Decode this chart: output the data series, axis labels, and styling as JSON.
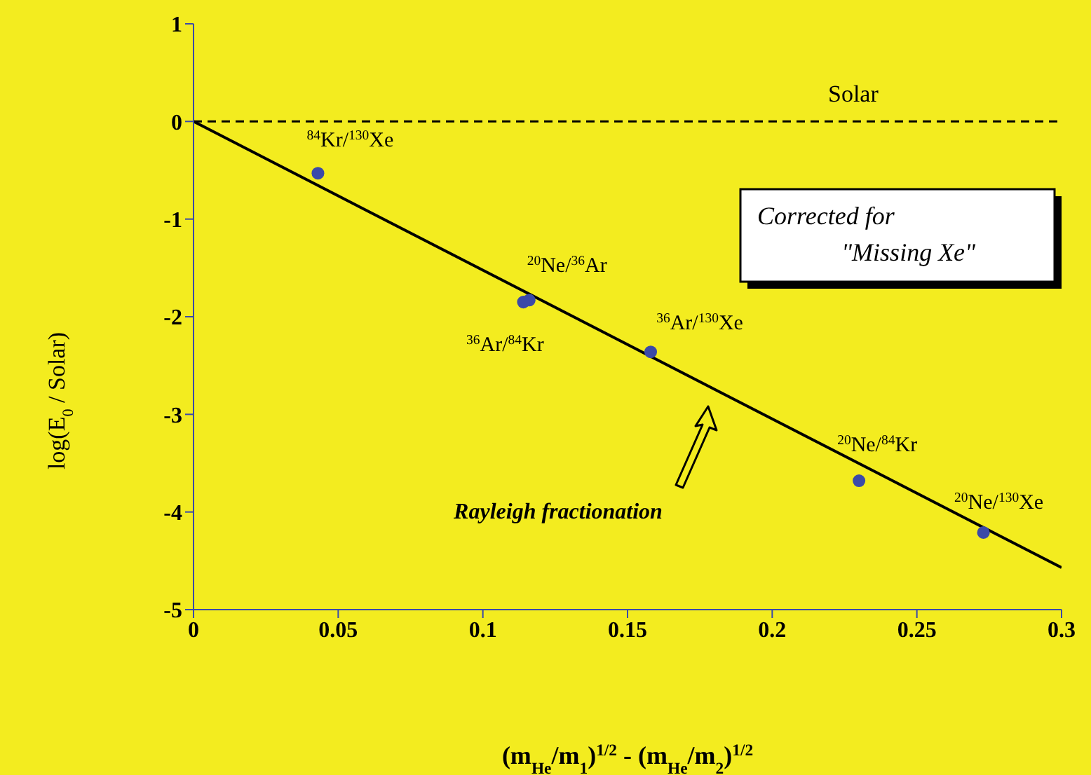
{
  "chart_data": {
    "type": "scatter",
    "xlabel": "(m$_{He}$/m$_{1}$)$^{1/2}$ - (m$_{He}$/m$_{2}$)$^{1/2}$",
    "ylabel": "log(E$_{0}$ / Solar)",
    "xlim": [
      0,
      0.3
    ],
    "xticks": [
      0,
      0.05,
      0.1,
      0.15,
      0.2,
      0.25,
      0.3
    ],
    "ylim": [
      -5,
      1
    ],
    "yticks": [
      -5,
      -4,
      -3,
      -2,
      -1,
      0,
      1
    ],
    "grid": false,
    "legend": false,
    "marker": "circle",
    "series": [
      {
        "color": "#3b4aa8",
        "x": [
          0.043,
          0.116,
          0.114,
          0.158,
          0.23,
          0.273
        ],
        "values": [
          -0.53,
          -1.83,
          -1.85,
          -2.36,
          -3.68,
          -4.21
        ]
      },
      {
        "type": "line",
        "color": "#000000",
        "marker": "none",
        "line_style": "solid",
        "x": [
          0,
          0.3
        ],
        "values": [
          0,
          -4.57
        ]
      }
    ],
    "ref_lines": [
      {
        "axis": "y",
        "value": 0,
        "label": "Solar",
        "color": "#000000",
        "line_style": "dashed"
      }
    ],
    "annotations": [
      {
        "text": "$^{84}$Kr/$^{130}$Xe",
        "x": 0.043,
        "y": -0.53
      },
      {
        "text": "$^{20}$Ne/$^{36}$Ar",
        "x": 0.116,
        "y": -1.83
      },
      {
        "text": "$^{36}$Ar/$^{84}$Kr",
        "x": 0.114,
        "y": -1.85
      },
      {
        "text": "$^{36}$Ar/$^{130}$Xe",
        "x": 0.158,
        "y": -2.36
      },
      {
        "text": "$^{20}$Ne/$^{84}$Kr",
        "x": 0.23,
        "y": -3.68
      },
      {
        "text": "$^{20}$Ne/$^{130}$Xe",
        "x": 0.273,
        "y": -4.21
      },
      "Rayleigh fractionation",
      "Corrected for",
      "\"Missing Xe\""
    ]
  }
}
